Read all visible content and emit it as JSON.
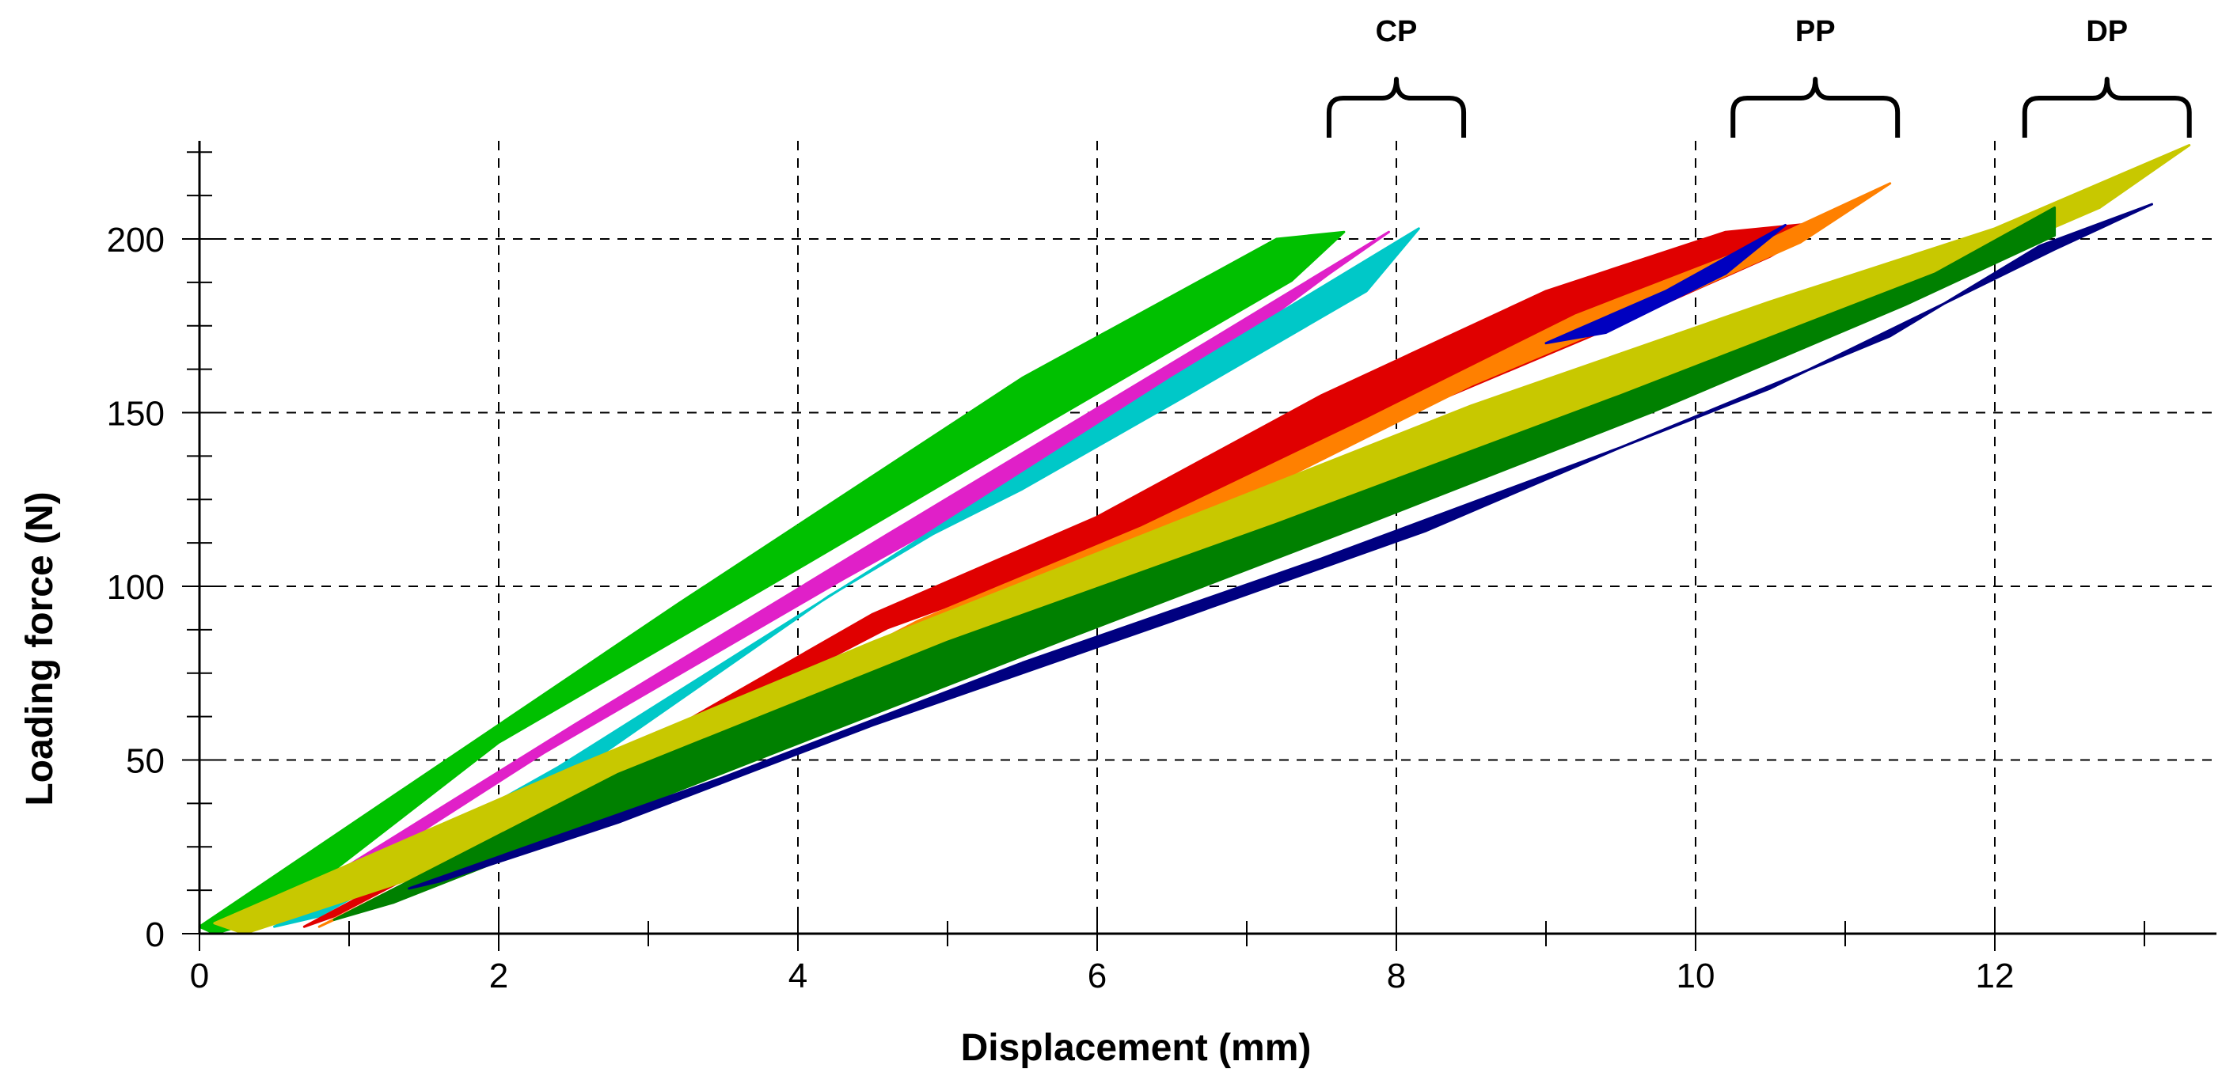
{
  "chart_data": {
    "type": "line",
    "title": "",
    "xlabel": "Displacement (mm)",
    "ylabel": "Loading force (N)",
    "xlim": [
      0,
      13.4
    ],
    "ylim": [
      0,
      228
    ],
    "xticks": [
      0,
      2,
      4,
      6,
      8,
      10,
      12
    ],
    "yticks": [
      0,
      50,
      100,
      150,
      200
    ],
    "x_tick_labels": [
      "0",
      "2",
      "4",
      "6",
      "8",
      "10",
      "12"
    ],
    "y_tick_labels": [
      "0",
      "50",
      "100",
      "150",
      "200"
    ],
    "grid": true,
    "legend": "none",
    "groups": [
      {
        "label": "CP",
        "x_range": [
          7.55,
          8.45
        ]
      },
      {
        "label": "PP",
        "x_range": [
          10.25,
          11.35
        ]
      },
      {
        "label": "DP",
        "x_range": [
          12.2,
          13.3
        ]
      }
    ],
    "bands": [
      {
        "color": "#00c000",
        "polygon": [
          [
            0.1,
            0
          ],
          [
            0.0,
            2
          ],
          [
            3.2,
            95
          ],
          [
            5.5,
            160
          ],
          [
            7.2,
            200
          ],
          [
            7.65,
            202
          ],
          [
            7.3,
            188
          ],
          [
            5.7,
            148
          ],
          [
            3.8,
            100
          ],
          [
            2.0,
            55
          ],
          [
            0.5,
            5
          ]
        ]
      },
      {
        "color": "#e020c8",
        "polygon": [
          [
            0.3,
            1
          ],
          [
            2.5,
            60
          ],
          [
            4.6,
            115
          ],
          [
            6.8,
            172
          ],
          [
            7.95,
            202
          ],
          [
            7.55,
            190
          ],
          [
            6.3,
            150
          ],
          [
            4.3,
            102
          ],
          [
            2.3,
            52
          ],
          [
            0.6,
            5
          ]
        ]
      },
      {
        "color": "#00c8c8",
        "polygon": [
          [
            0.5,
            2
          ],
          [
            2.4,
            48
          ],
          [
            4.5,
            105
          ],
          [
            6.5,
            160
          ],
          [
            8.15,
            203
          ],
          [
            7.8,
            185
          ],
          [
            6.6,
            155
          ],
          [
            5.5,
            128
          ],
          [
            4.9,
            115
          ],
          [
            4.2,
            97
          ],
          [
            2.5,
            46
          ],
          [
            0.8,
            5
          ]
        ]
      },
      {
        "color": "#e00000",
        "polygon": [
          [
            0.7,
            2
          ],
          [
            3.0,
            55
          ],
          [
            4.5,
            92
          ],
          [
            6.0,
            120
          ],
          [
            7.5,
            155
          ],
          [
            9.0,
            185
          ],
          [
            10.2,
            202
          ],
          [
            10.9,
            205
          ],
          [
            10.5,
            195
          ],
          [
            9.3,
            172
          ],
          [
            7.7,
            143
          ],
          [
            6.2,
            113
          ],
          [
            4.6,
            88
          ],
          [
            2.9,
            50
          ],
          [
            0.9,
            5
          ]
        ]
      },
      {
        "color": "#ff8000",
        "polygon": [
          [
            0.8,
            2
          ],
          [
            3.1,
            52
          ],
          [
            4.8,
            90
          ],
          [
            6.3,
            117
          ],
          [
            7.8,
            148
          ],
          [
            9.2,
            178
          ],
          [
            10.4,
            198
          ],
          [
            11.3,
            216
          ],
          [
            10.7,
            199
          ],
          [
            9.6,
            178
          ],
          [
            8.5,
            158
          ],
          [
            7.2,
            130
          ],
          [
            5.5,
            100
          ],
          [
            4.1,
            76
          ],
          [
            2.9,
            46
          ],
          [
            0.9,
            4
          ]
        ]
      },
      {
        "color": "#0000c0",
        "polygon": [
          [
            9.0,
            170
          ],
          [
            9.8,
            185
          ],
          [
            10.6,
            204
          ],
          [
            10.2,
            190
          ],
          [
            9.4,
            173
          ]
        ]
      },
      {
        "color": "#c8c800",
        "polygon": [
          [
            0.1,
            3
          ],
          [
            2.5,
            48
          ],
          [
            4.5,
            84
          ],
          [
            6.5,
            118
          ],
          [
            8.5,
            152
          ],
          [
            10.5,
            182
          ],
          [
            12.0,
            203
          ],
          [
            13.3,
            227
          ],
          [
            12.7,
            209
          ],
          [
            12.0,
            196
          ],
          [
            10.8,
            173
          ],
          [
            9.2,
            145
          ],
          [
            7.5,
            117
          ],
          [
            5.5,
            82
          ],
          [
            3.5,
            48
          ],
          [
            1.5,
            17
          ],
          [
            0.3,
            0
          ]
        ]
      },
      {
        "color": "#008000",
        "polygon": [
          [
            0.9,
            4
          ],
          [
            2.8,
            46
          ],
          [
            5.0,
            84
          ],
          [
            7.2,
            118
          ],
          [
            9.5,
            155
          ],
          [
            11.6,
            190
          ],
          [
            12.4,
            209
          ],
          [
            12.4,
            201
          ],
          [
            11.4,
            181
          ],
          [
            9.7,
            150
          ],
          [
            7.8,
            118
          ],
          [
            5.8,
            85
          ],
          [
            3.6,
            48
          ],
          [
            1.3,
            9
          ]
        ]
      },
      {
        "color": "#000080",
        "polygon": [
          [
            1.4,
            13
          ],
          [
            3.5,
            45
          ],
          [
            5.5,
            78
          ],
          [
            7.5,
            108
          ],
          [
            9.5,
            140
          ],
          [
            11.3,
            172
          ],
          [
            12.3,
            198
          ],
          [
            13.05,
            210
          ],
          [
            12.4,
            197
          ],
          [
            11.5,
            178
          ],
          [
            10.5,
            157
          ],
          [
            9.5,
            140
          ],
          [
            8.2,
            116
          ],
          [
            6.5,
            90
          ],
          [
            4.5,
            60
          ],
          [
            2.8,
            32
          ],
          [
            1.6,
            15
          ]
        ]
      }
    ]
  }
}
